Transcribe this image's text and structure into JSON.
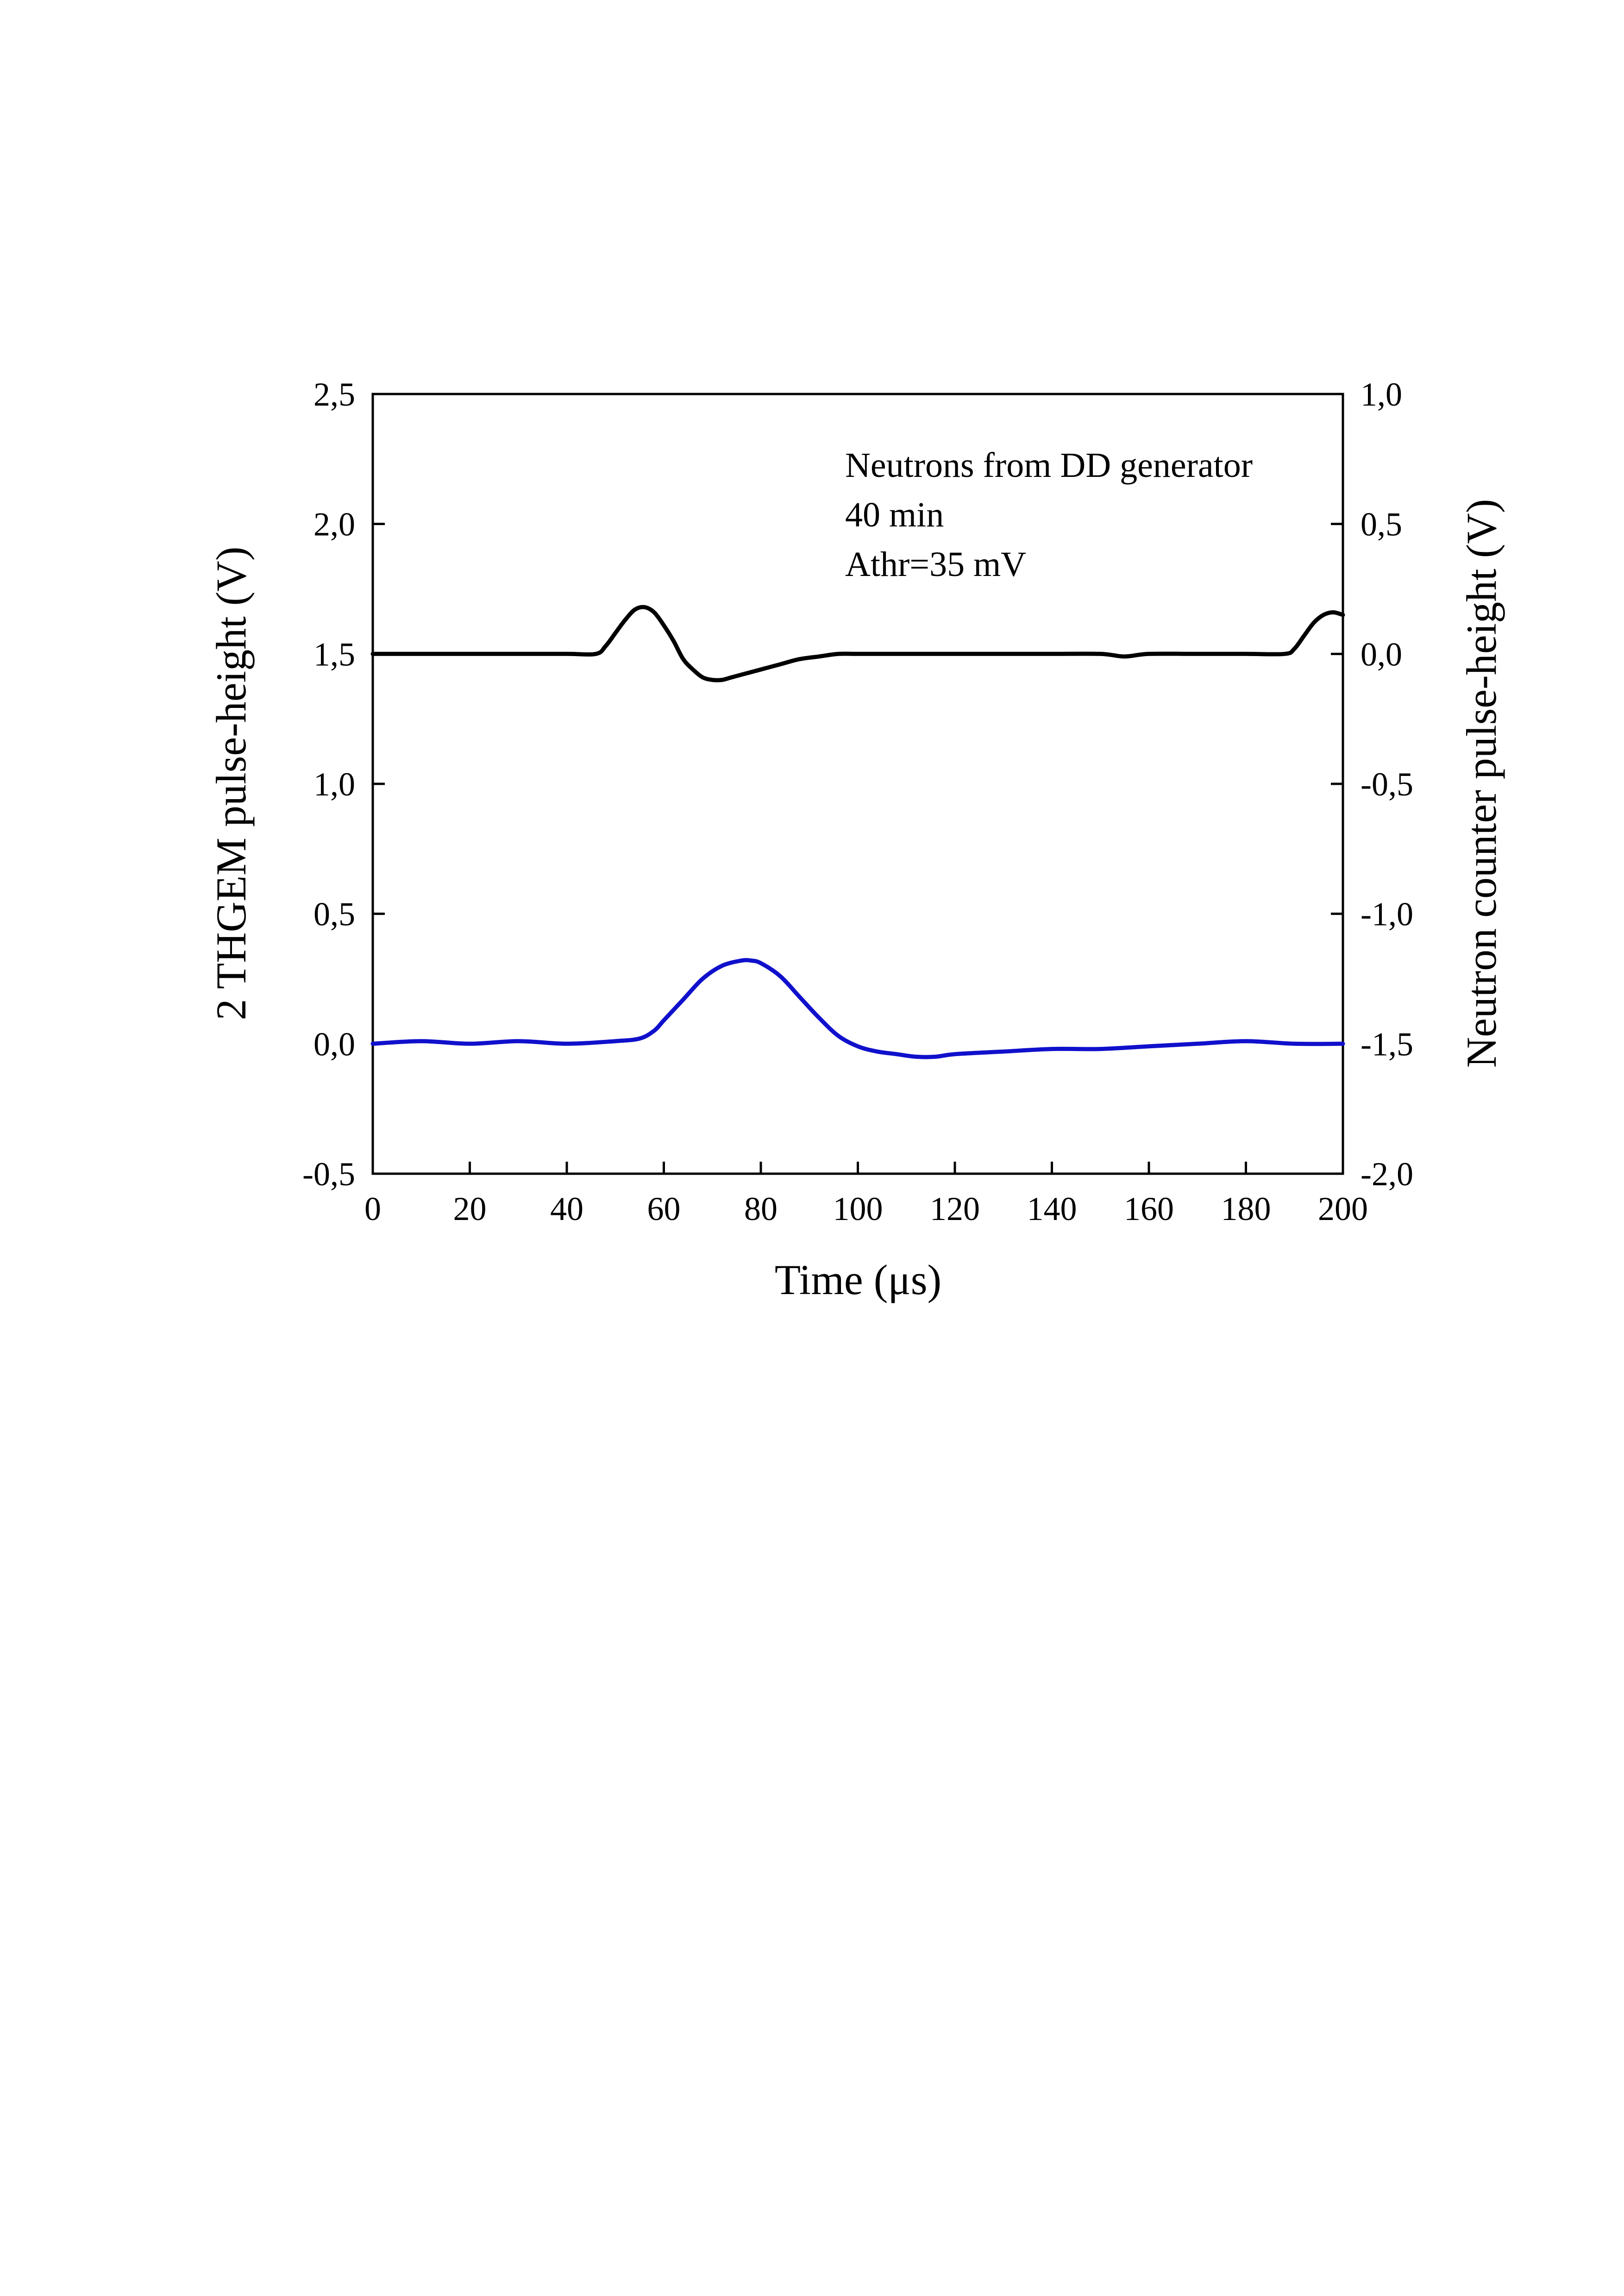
{
  "chart_data": {
    "type": "line",
    "xlabel": "Time (μs)",
    "ylabel_left": "2 THGEM pulse-height (V)",
    "ylabel_right": "Neutron counter pulse-height (V)",
    "xlim": [
      0,
      200
    ],
    "ylim_left": [
      -0.5,
      2.5
    ],
    "ylim_right": [
      -2.0,
      1.0
    ],
    "x_ticks": [
      "0",
      "20",
      "40",
      "60",
      "80",
      "100",
      "120",
      "140",
      "160",
      "180",
      "200"
    ],
    "y_left_ticks": [
      "-0,5",
      "0,0",
      "0,5",
      "1,0",
      "1,5",
      "2,0",
      "2,5"
    ],
    "y_right_ticks": [
      "-2,0",
      "-1,5",
      "-1,0",
      "-0,5",
      "0,0",
      "0,5",
      "1,0"
    ],
    "grid": false,
    "annotations": [
      "Neutrons from DD generator",
      "40 min",
      "Athr=35 mV"
    ],
    "series": [
      {
        "axis": "right",
        "color": "#000000",
        "x": [
          0,
          10,
          20,
          30,
          40,
          46,
          48,
          50,
          52,
          54,
          56,
          58,
          60,
          62,
          64,
          66,
          68,
          70,
          72,
          74,
          76,
          78,
          80,
          84,
          88,
          92,
          96,
          100,
          110,
          120,
          130,
          140,
          150,
          155,
          160,
          170,
          180,
          188,
          190,
          192,
          194,
          196,
          198,
          200
        ],
        "y": [
          0.0,
          0.0,
          0.0,
          0.0,
          0.0,
          0.0,
          0.03,
          0.08,
          0.13,
          0.17,
          0.18,
          0.16,
          0.11,
          0.05,
          -0.02,
          -0.06,
          -0.09,
          -0.1,
          -0.1,
          -0.09,
          -0.08,
          -0.07,
          -0.06,
          -0.04,
          -0.02,
          -0.01,
          0.0,
          0.0,
          0.0,
          0.0,
          0.0,
          0.0,
          0.0,
          -0.01,
          0.0,
          0.0,
          0.0,
          0.0,
          0.02,
          0.07,
          0.12,
          0.15,
          0.16,
          0.15
        ]
      },
      {
        "axis": "left",
        "color": "#1010cc",
        "x": [
          0,
          10,
          20,
          30,
          40,
          50,
          55,
          58,
          60,
          64,
          68,
          72,
          76,
          78,
          80,
          84,
          88,
          92,
          96,
          100,
          104,
          108,
          112,
          116,
          120,
          130,
          140,
          150,
          160,
          170,
          180,
          190,
          200
        ],
        "y": [
          0.0,
          0.01,
          0.0,
          0.01,
          0.0,
          0.01,
          0.02,
          0.05,
          0.09,
          0.17,
          0.25,
          0.3,
          0.32,
          0.32,
          0.31,
          0.26,
          0.18,
          0.1,
          0.03,
          -0.01,
          -0.03,
          -0.04,
          -0.05,
          -0.05,
          -0.04,
          -0.03,
          -0.02,
          -0.02,
          -0.01,
          0.0,
          0.01,
          0.0,
          0.0
        ]
      }
    ]
  }
}
